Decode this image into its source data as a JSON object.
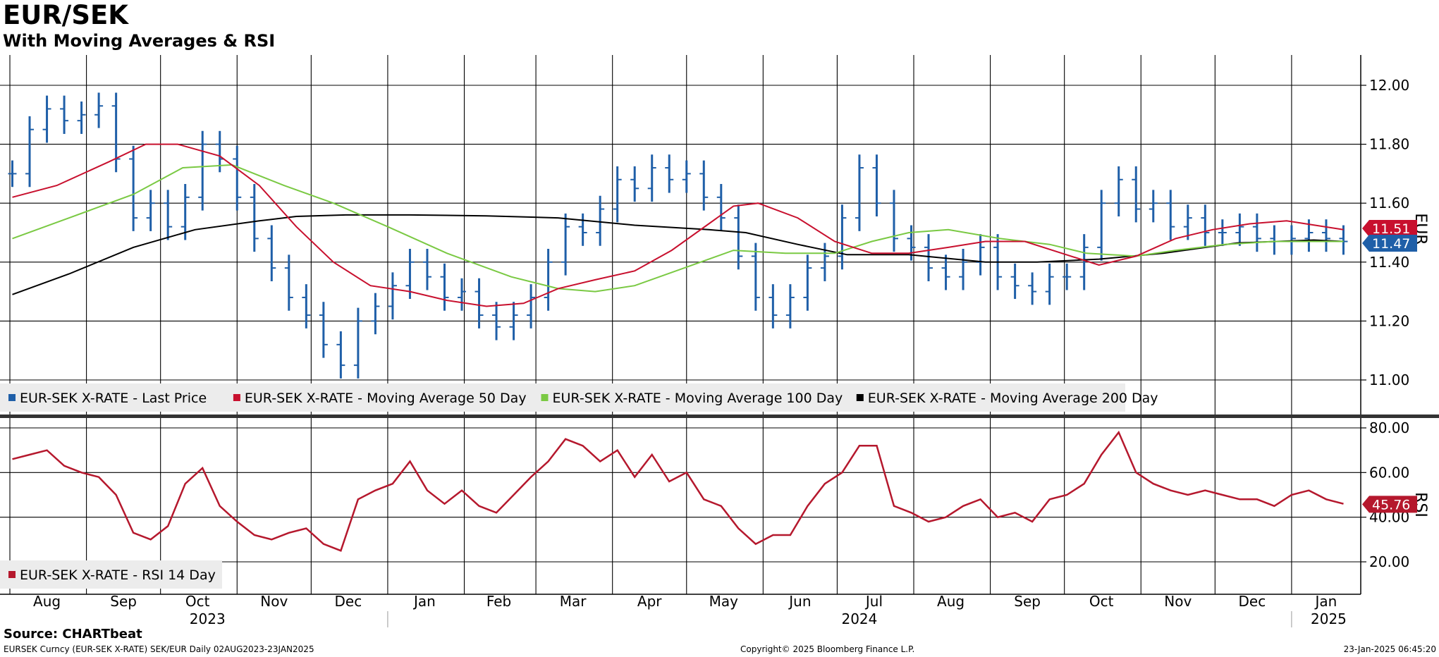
{
  "header": {
    "title": "EUR/SEK",
    "subtitle": "With Moving Averages & RSI"
  },
  "colors": {
    "price": "#1f5fa8",
    "ma50": "#c8102e",
    "ma100": "#7ac943",
    "ma200": "#000000",
    "rsi": "#b5182d",
    "grid": "#000000",
    "legend_bg": "#ececec"
  },
  "chart_data": [
    {
      "type": "bar",
      "subtype": "ohlc-price-with-moving-averages",
      "axis_side": "right",
      "axis_label": "EUR",
      "ylim": [
        10.95,
        12.08
      ],
      "yticks": [
        "12.00",
        "11.80",
        "11.60",
        "11.40",
        "11.20",
        "11.00"
      ],
      "legend": [
        {
          "label": "EUR-SEK X-RATE - Last Price",
          "color": "#1f5fa8"
        },
        {
          "label": "EUR-SEK X-RATE - Moving Average 50 Day",
          "color": "#c8102e"
        },
        {
          "label": "EUR-SEK X-RATE - Moving Average 100 Day",
          "color": "#7ac943"
        },
        {
          "label": "EUR-SEK X-RATE - Moving Average 200 Day",
          "color": "#000000"
        }
      ],
      "last_value_tags": [
        {
          "label": "11.51",
          "value": 11.51,
          "color": "#c8102e"
        },
        {
          "label": "11.47",
          "value": 11.47,
          "color": "#1f5fa8"
        }
      ],
      "series": [
        {
          "name": "EUR-SEK X-RATE - Last Price",
          "x": [
            "2023-08-02",
            "2023-08-09",
            "2023-08-16",
            "2023-08-23",
            "2023-08-30",
            "2023-09-06",
            "2023-09-13",
            "2023-09-20",
            "2023-09-27",
            "2023-10-04",
            "2023-10-11",
            "2023-10-18",
            "2023-10-25",
            "2023-11-01",
            "2023-11-08",
            "2023-11-15",
            "2023-11-22",
            "2023-11-29",
            "2023-12-06",
            "2023-12-13",
            "2023-12-20",
            "2023-12-27",
            "2024-01-03",
            "2024-01-10",
            "2024-01-17",
            "2024-01-24",
            "2024-01-31",
            "2024-02-07",
            "2024-02-14",
            "2024-02-21",
            "2024-02-28",
            "2024-03-06",
            "2024-03-13",
            "2024-03-20",
            "2024-03-27",
            "2024-04-03",
            "2024-04-10",
            "2024-04-17",
            "2024-04-24",
            "2024-05-01",
            "2024-05-08",
            "2024-05-15",
            "2024-05-22",
            "2024-05-29",
            "2024-06-05",
            "2024-06-12",
            "2024-06-19",
            "2024-06-26",
            "2024-07-03",
            "2024-07-10",
            "2024-07-17",
            "2024-07-24",
            "2024-07-31",
            "2024-08-07",
            "2024-08-14",
            "2024-08-21",
            "2024-08-28",
            "2024-09-04",
            "2024-09-11",
            "2024-09-18",
            "2024-09-25",
            "2024-10-02",
            "2024-10-09",
            "2024-10-16",
            "2024-10-23",
            "2024-10-30",
            "2024-11-06",
            "2024-11-13",
            "2024-11-20",
            "2024-11-27",
            "2024-12-04",
            "2024-12-11",
            "2024-12-18",
            "2024-12-25",
            "2025-01-01",
            "2025-01-08",
            "2025-01-15",
            "2025-01-22"
          ],
          "values": [
            11.7,
            11.85,
            11.92,
            11.88,
            11.9,
            11.93,
            11.75,
            11.55,
            11.6,
            11.52,
            11.62,
            11.8,
            11.75,
            11.62,
            11.48,
            11.38,
            11.28,
            11.22,
            11.12,
            11.05,
            11.2,
            11.25,
            11.32,
            11.4,
            11.35,
            11.28,
            11.3,
            11.22,
            11.18,
            11.22,
            11.28,
            11.4,
            11.52,
            11.5,
            11.58,
            11.68,
            11.65,
            11.72,
            11.68,
            11.7,
            11.62,
            11.55,
            11.42,
            11.28,
            11.22,
            11.28,
            11.38,
            11.42,
            11.55,
            11.72,
            11.6,
            11.48,
            11.45,
            11.38,
            11.35,
            11.4,
            11.45,
            11.35,
            11.32,
            11.3,
            11.35,
            11.35,
            11.45,
            11.6,
            11.68,
            11.58,
            11.6,
            11.52,
            11.55,
            11.5,
            11.5,
            11.52,
            11.48,
            11.47,
            11.48,
            11.5,
            11.48,
            11.47
          ]
        },
        {
          "name": "EUR-SEK X-RATE - Moving Average 50 Day",
          "x": [
            "2023-08-02",
            "2023-08-20",
            "2023-09-10",
            "2023-09-25",
            "2023-10-08",
            "2023-10-25",
            "2023-11-10",
            "2023-11-25",
            "2023-12-10",
            "2023-12-25",
            "2024-01-10",
            "2024-01-25",
            "2024-02-10",
            "2024-02-25",
            "2024-03-10",
            "2024-03-25",
            "2024-04-10",
            "2024-04-25",
            "2024-05-10",
            "2024-05-20",
            "2024-05-30",
            "2024-06-15",
            "2024-06-30",
            "2024-07-15",
            "2024-07-30",
            "2024-08-15",
            "2024-08-30",
            "2024-09-15",
            "2024-09-30",
            "2024-10-15",
            "2024-10-30",
            "2024-11-15",
            "2024-11-30",
            "2024-12-15",
            "2024-12-30",
            "2025-01-22"
          ],
          "values": [
            11.62,
            11.66,
            11.74,
            11.8,
            11.8,
            11.76,
            11.66,
            11.52,
            11.4,
            11.32,
            11.3,
            11.27,
            11.25,
            11.26,
            11.31,
            11.34,
            11.37,
            11.44,
            11.53,
            11.59,
            11.6,
            11.55,
            11.47,
            11.43,
            11.43,
            11.45,
            11.47,
            11.47,
            11.43,
            11.39,
            11.42,
            11.48,
            11.51,
            11.53,
            11.54,
            11.51
          ]
        },
        {
          "name": "EUR-SEK X-RATE - Moving Average 100 Day",
          "x": [
            "2023-08-02",
            "2023-08-25",
            "2023-09-20",
            "2023-10-10",
            "2023-10-30",
            "2023-11-20",
            "2023-12-10",
            "2024-01-01",
            "2024-01-25",
            "2024-02-20",
            "2024-03-10",
            "2024-03-25",
            "2024-04-10",
            "2024-04-30",
            "2024-05-20",
            "2024-06-10",
            "2024-06-30",
            "2024-07-15",
            "2024-07-30",
            "2024-08-15",
            "2024-09-05",
            "2024-09-25",
            "2024-10-10",
            "2024-10-30",
            "2024-11-15",
            "2024-12-05",
            "2024-12-25",
            "2025-01-22"
          ],
          "values": [
            11.48,
            11.55,
            11.63,
            11.72,
            11.73,
            11.66,
            11.6,
            11.52,
            11.43,
            11.35,
            11.31,
            11.3,
            11.32,
            11.38,
            11.44,
            11.43,
            11.43,
            11.47,
            11.5,
            11.51,
            11.48,
            11.46,
            11.43,
            11.42,
            11.44,
            11.46,
            11.47,
            11.47
          ]
        },
        {
          "name": "EUR-SEK X-RATE - Moving Average 200 Day",
          "x": [
            "2023-08-02",
            "2023-08-25",
            "2023-09-20",
            "2023-10-15",
            "2023-11-10",
            "2023-11-25",
            "2023-12-15",
            "2024-01-10",
            "2024-02-10",
            "2024-03-10",
            "2024-04-10",
            "2024-05-10",
            "2024-05-25",
            "2024-06-15",
            "2024-07-05",
            "2024-07-30",
            "2024-08-30",
            "2024-09-20",
            "2024-10-15",
            "2024-11-10",
            "2024-12-10",
            "2025-01-10",
            "2025-01-22"
          ],
          "values": [
            11.29,
            11.36,
            11.45,
            11.51,
            11.54,
            11.555,
            11.56,
            11.56,
            11.557,
            11.55,
            11.525,
            11.51,
            11.5,
            11.46,
            11.425,
            11.425,
            11.4,
            11.4,
            11.41,
            11.43,
            11.465,
            11.475,
            11.47
          ]
        }
      ]
    },
    {
      "type": "line",
      "subtype": "rsi",
      "axis_side": "right",
      "axis_label": "RSI",
      "ylim": [
        10,
        82
      ],
      "yticks": [
        "80.00",
        "60.00",
        "40.00",
        "20.00"
      ],
      "legend": [
        {
          "label": "EUR-SEK X-RATE - RSI 14 Day",
          "color": "#b5182d"
        }
      ],
      "last_value_tags": [
        {
          "label": "45.76",
          "value": 45.76,
          "color": "#b5182d"
        }
      ],
      "series": [
        {
          "name": "EUR-SEK X-RATE - RSI 14 Day",
          "x": [
            "2023-08-02",
            "2023-08-09",
            "2023-08-16",
            "2023-08-23",
            "2023-08-30",
            "2023-09-06",
            "2023-09-13",
            "2023-09-20",
            "2023-09-27",
            "2023-10-04",
            "2023-10-11",
            "2023-10-18",
            "2023-10-25",
            "2023-11-01",
            "2023-11-08",
            "2023-11-15",
            "2023-11-22",
            "2023-11-29",
            "2023-12-06",
            "2023-12-13",
            "2023-12-20",
            "2023-12-27",
            "2024-01-03",
            "2024-01-10",
            "2024-01-17",
            "2024-01-24",
            "2024-01-31",
            "2024-02-07",
            "2024-02-14",
            "2024-02-21",
            "2024-02-28",
            "2024-03-06",
            "2024-03-13",
            "2024-03-20",
            "2024-03-27",
            "2024-04-03",
            "2024-04-10",
            "2024-04-17",
            "2024-04-24",
            "2024-05-01",
            "2024-05-08",
            "2024-05-15",
            "2024-05-22",
            "2024-05-29",
            "2024-06-05",
            "2024-06-12",
            "2024-06-19",
            "2024-06-26",
            "2024-07-03",
            "2024-07-10",
            "2024-07-17",
            "2024-07-24",
            "2024-07-31",
            "2024-08-07",
            "2024-08-14",
            "2024-08-21",
            "2024-08-28",
            "2024-09-04",
            "2024-09-11",
            "2024-09-18",
            "2024-09-25",
            "2024-10-02",
            "2024-10-09",
            "2024-10-16",
            "2024-10-23",
            "2024-10-30",
            "2024-11-06",
            "2024-11-13",
            "2024-11-20",
            "2024-11-27",
            "2024-12-04",
            "2024-12-11",
            "2024-12-18",
            "2024-12-25",
            "2025-01-01",
            "2025-01-08",
            "2025-01-15",
            "2025-01-22"
          ],
          "values": [
            66,
            68,
            70,
            63,
            60,
            58,
            50,
            33,
            30,
            36,
            55,
            62,
            45,
            38,
            32,
            30,
            33,
            35,
            28,
            25,
            48,
            52,
            55,
            65,
            52,
            46,
            52,
            45,
            42,
            50,
            58,
            65,
            75,
            72,
            65,
            70,
            58,
            68,
            56,
            60,
            48,
            45,
            35,
            28,
            32,
            32,
            45,
            55,
            60,
            72,
            72,
            45,
            42,
            38,
            40,
            45,
            48,
            40,
            42,
            38,
            48,
            50,
            55,
            68,
            78,
            60,
            55,
            52,
            50,
            52,
            50,
            48,
            48,
            45,
            50,
            52,
            48,
            46
          ]
        }
      ]
    }
  ],
  "xaxis": {
    "months": [
      "Aug",
      "Sep",
      "Oct",
      "Nov",
      "Dec",
      "Jan",
      "Feb",
      "Mar",
      "Apr",
      "May",
      "Jun",
      "Jul",
      "Aug",
      "Sep",
      "Oct",
      "Nov",
      "Dec",
      "Jan"
    ],
    "years": [
      "2023",
      "2024",
      "2025"
    ]
  },
  "footer": {
    "source": "Source: CHARTbeat",
    "left": "EURSEK Curncy (EUR-SEK X-RATE) SEK/EUR  Daily 02AUG2023-23JAN2025",
    "center": "Copyright© 2025 Bloomberg Finance L.P.",
    "right": "23-Jan-2025 06:45:20"
  }
}
